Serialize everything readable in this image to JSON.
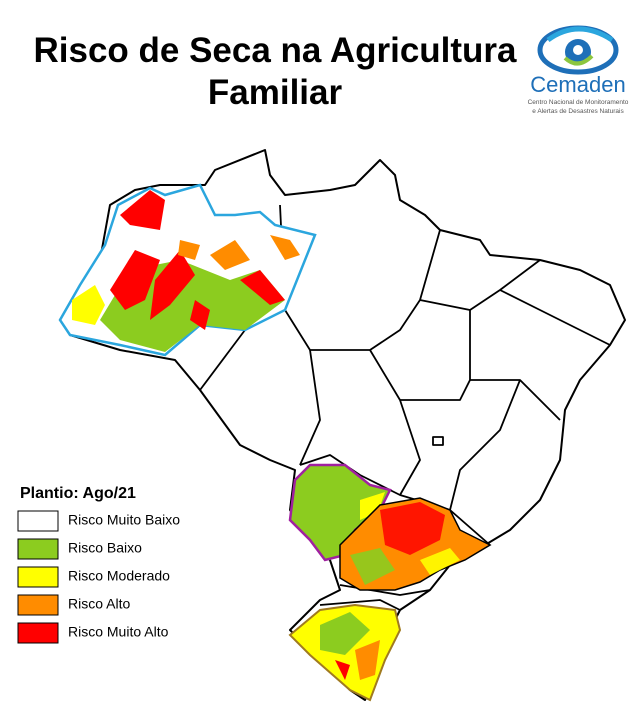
{
  "header": {
    "title_lines": [
      "Risco de Seca na Agricultura",
      "Familiar"
    ]
  },
  "logo": {
    "name": "Cemaden",
    "tagline_lines": [
      "Centro Nacional de Monitoramento",
      "e Alertas de Desastres Naturais"
    ]
  },
  "legend": {
    "title": "Plantio: Ago/21",
    "items": [
      {
        "label": "Risco Muito Baixo",
        "color": "#ffffff"
      },
      {
        "label": "Risco Baixo",
        "color": "#8ccc1f"
      },
      {
        "label": "Risco Moderado",
        "color": "#ffff00"
      },
      {
        "label": "Risco Alto",
        "color": "#ff8c00"
      },
      {
        "label": "Risco Muito Alto",
        "color": "#ff0000"
      }
    ]
  }
}
